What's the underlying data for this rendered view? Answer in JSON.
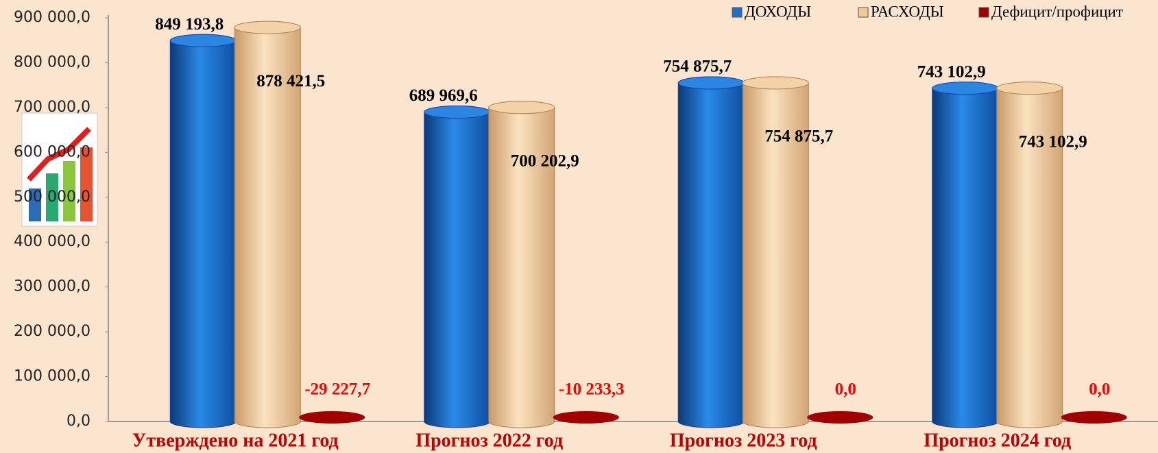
{
  "chart_data": {
    "type": "bar",
    "categories": [
      "Утверждено на 2021 год",
      "Прогноз 2022 год",
      "Прогноз 2023 год",
      "Прогноз 2024 год"
    ],
    "series": [
      {
        "name": "ДОХОДЫ",
        "color": "#1f6fc4",
        "values": [
          849193.8,
          689969.6,
          754875.7,
          743102.9
        ],
        "value_labels": [
          "849 193,8",
          "689  969,6",
          "754 875,7",
          "743 102,9"
        ]
      },
      {
        "name": "РАСХОДЫ",
        "color": "#f2c998",
        "values": [
          878421.5,
          700202.9,
          754875.7,
          743102.9
        ],
        "value_labels": [
          "878 421,5",
          "700 202,9",
          "754 875,7",
          "743 102,9"
        ]
      },
      {
        "name": "Дефицит/профицит",
        "color": "#a00000",
        "values": [
          -29227.7,
          -10233.3,
          0,
          0
        ],
        "value_labels": [
          "-29 227,7",
          "-10 233,3",
          "0,0",
          "0,0"
        ]
      }
    ],
    "ylim": [
      0,
      900000
    ],
    "yticks": [
      {
        "value": 0,
        "label": "0,0"
      },
      {
        "value": 100000,
        "label": "100 000,0"
      },
      {
        "value": 200000,
        "label": "200 000,0"
      },
      {
        "value": 300000,
        "label": "300 000,0"
      },
      {
        "value": 400000,
        "label": "400 000,0"
      },
      {
        "value": 500000,
        "label": "500 000,0"
      },
      {
        "value": 600000,
        "label": "600 000,0"
      },
      {
        "value": 700000,
        "label": "700 000,0"
      },
      {
        "value": 800000,
        "label": "800 000,0"
      },
      {
        "value": 900000,
        "label": "900 000,0"
      }
    ],
    "legend": "top-right"
  }
}
